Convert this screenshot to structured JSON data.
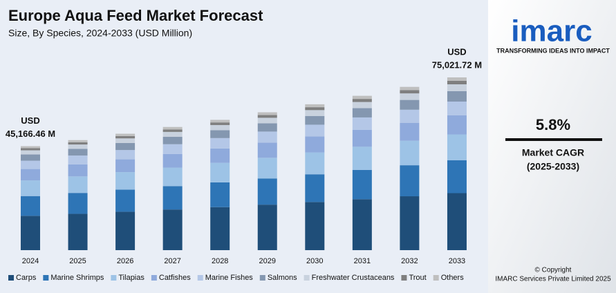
{
  "chart_data": {
    "type": "stacked_bar",
    "title": "Europe Aqua Feed Market Forecast",
    "subtitle": "Size, By Species, 2024-2033 (USD Million)",
    "categories": [
      "2024",
      "2025",
      "2026",
      "2027",
      "2028",
      "2029",
      "2030",
      "2031",
      "2032",
      "2033"
    ],
    "series": [
      {
        "name": "Carps",
        "color": "#1f4e79",
        "values": [
          14905,
          15769,
          16684,
          17652,
          18676,
          19759,
          20905,
          22117,
          23400,
          24757
        ]
      },
      {
        "name": "Marine Shrimps",
        "color": "#2e75b6",
        "values": [
          8582,
          9079,
          9606,
          10163,
          10753,
          11376,
          12036,
          12734,
          13473,
          14254
        ]
      },
      {
        "name": "Tilapias",
        "color": "#9dc3e6",
        "values": [
          6775,
          7168,
          7584,
          8024,
          8489,
          8981,
          9502,
          10053,
          10636,
          11253
        ]
      },
      {
        "name": "Catfishes",
        "color": "#8faadc",
        "values": [
          4968,
          5256,
          5561,
          5884,
          6225,
          6586,
          6968,
          7372,
          7800,
          8252
        ]
      },
      {
        "name": "Marine Fishes",
        "color": "#b4c7e7",
        "values": [
          3613,
          3823,
          4045,
          4279,
          4527,
          4790,
          5068,
          5362,
          5673,
          6002
        ]
      },
      {
        "name": "Salmons",
        "color": "#8497b0",
        "values": [
          2710,
          2867,
          3033,
          3209,
          3396,
          3593,
          3801,
          4021,
          4255,
          4501
        ]
      },
      {
        "name": "Freshwater Crustaceans",
        "color": "#c9d2de",
        "values": [
          1807,
          1911,
          2022,
          2140,
          2264,
          2395,
          2534,
          2681,
          2836,
          3001
        ]
      },
      {
        "name": "Trout",
        "color": "#7f7f7f",
        "values": [
          903,
          956,
          1011,
          1070,
          1132,
          1198,
          1267,
          1340,
          1418,
          1500
        ]
      },
      {
        "name": "Others",
        "color": "#bfbfbf",
        "values": [
          903,
          957,
          1012,
          1069,
          1131,
          1197,
          1267,
          1342,
          1418,
          1502
        ]
      }
    ],
    "annotations": [
      {
        "category": "2024",
        "value": 45166.46,
        "lines": [
          "USD",
          "45,166.46 M"
        ]
      },
      {
        "category": "2033",
        "value": 75021.72,
        "lines": [
          "USD",
          "75,021.72 M"
        ]
      }
    ],
    "legend": "bottom"
  },
  "sidebar": {
    "logo": "imarc",
    "tagline": "TRANSFORMING IDEAS INTO IMPACT",
    "cagr": "5.8%",
    "cagr_label": "Market CAGR",
    "cagr_period": "(2025-2033)",
    "copyright": "© Copyright",
    "company": "IMARC Services Private Limited 2025"
  }
}
